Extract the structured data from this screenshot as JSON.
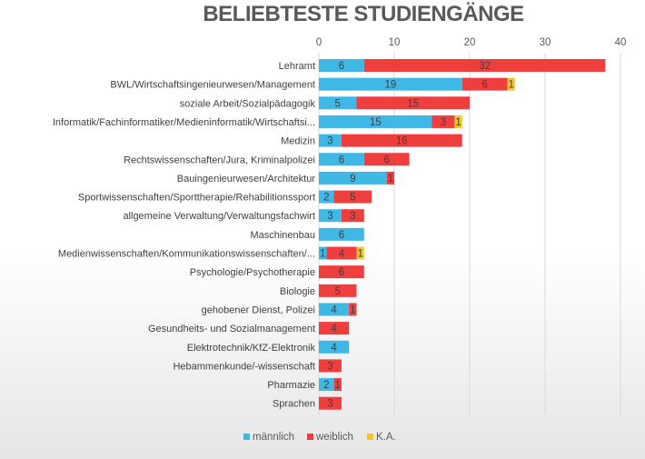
{
  "chart_data": {
    "type": "bar",
    "orientation": "horizontal",
    "stacked": true,
    "title": "BELIEBTESTE STUDIENGÄNGE",
    "xlim": [
      0,
      40
    ],
    "x_ticks": [
      0,
      10,
      20,
      30,
      40
    ],
    "grid": true,
    "legend_position": "bottom",
    "categories": [
      "Lehramt",
      "BWL/Wirtschaftsingenieurwesen/Management",
      "soziale Arbeit/Sozialpädagogik",
      "Informatik/Fachinformatiker/Medieninformatik/Wirtschaftsi...",
      "Medizin",
      "Rechtswissenschaften/Jura, Kriminalpolizei",
      "Bauingenieurwesen/Architektur",
      "Sportwissenschaften/Sporttherapie/Rehabilitionssport",
      "allgemeine Verwaltung/Verwaltungsfachwirt",
      "Maschinenbau",
      "Medienwissenschaften/Kommunikationswissenschaften/...",
      "Psychologie/Psychotherapie",
      "Biologie",
      "gehobener Dienst, Polizei",
      "Gesundheits- und Sozialmanagement",
      "Elektrotechnik/KfZ-Elektronik",
      "Hebammenkunde/-wissenschaft",
      "Pharmazie",
      "Sprachen"
    ],
    "series": [
      {
        "name": "männlich",
        "color": "#3fb8e6",
        "values": [
          6,
          19,
          5,
          15,
          3,
          6,
          9,
          2,
          3,
          6,
          1,
          0,
          0,
          4,
          0,
          4,
          0,
          2,
          0
        ]
      },
      {
        "name": "weiblich",
        "color": "#ef3e3e",
        "values": [
          32,
          6,
          15,
          3,
          16,
          6,
          1,
          5,
          3,
          0,
          4,
          6,
          5,
          1,
          4,
          0,
          3,
          1,
          3
        ]
      },
      {
        "name": "K.A.",
        "color": "#f5c531",
        "values": [
          0,
          1,
          0,
          1,
          0,
          0,
          0,
          0,
          0,
          0,
          1,
          0,
          0,
          0,
          0,
          0,
          0,
          0,
          0
        ]
      }
    ]
  }
}
